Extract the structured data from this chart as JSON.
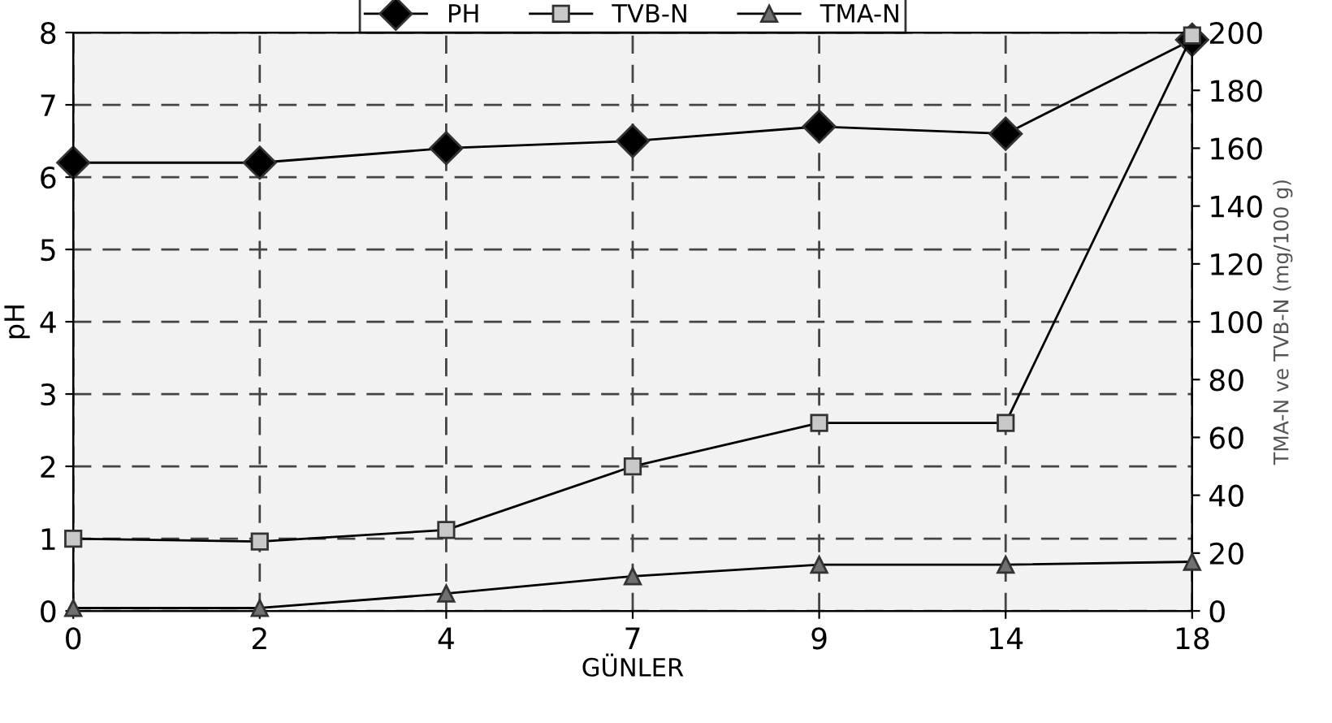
{
  "chart_data": {
    "type": "line",
    "xlabel": "GÜNLER",
    "ylabel": "pH",
    "y2label": "TMA-N ve TVB-N (mg/100 g)",
    "categories": [
      "0",
      "2",
      "4",
      "7",
      "9",
      "14",
      "18"
    ],
    "series": [
      {
        "name": "PH",
        "color": "#000000",
        "marker": "diamond",
        "values": [
          6.2,
          6.2,
          6.4,
          6.5,
          6.7,
          6.6,
          7.9
        ]
      },
      {
        "name": "TVB-N",
        "color": "#c8c8c8",
        "marker": "square",
        "axis": "y2",
        "values": [
          25,
          24,
          28,
          50,
          65,
          65,
          199
        ]
      },
      {
        "name": "TMA-N",
        "color": "#707070",
        "marker": "triangle",
        "axis": "y2",
        "values": [
          1,
          1,
          6,
          12,
          16,
          16,
          17
        ]
      }
    ],
    "ylim": [
      0,
      8
    ],
    "yticks": [
      0,
      1,
      2,
      3,
      4,
      5,
      6,
      7,
      8
    ],
    "y2lim": [
      0,
      200
    ],
    "y2ticks": [
      0,
      20,
      40,
      60,
      80,
      100,
      120,
      140,
      160,
      180,
      200
    ],
    "grid": true,
    "legend": "top",
    "line_style": "solid"
  }
}
